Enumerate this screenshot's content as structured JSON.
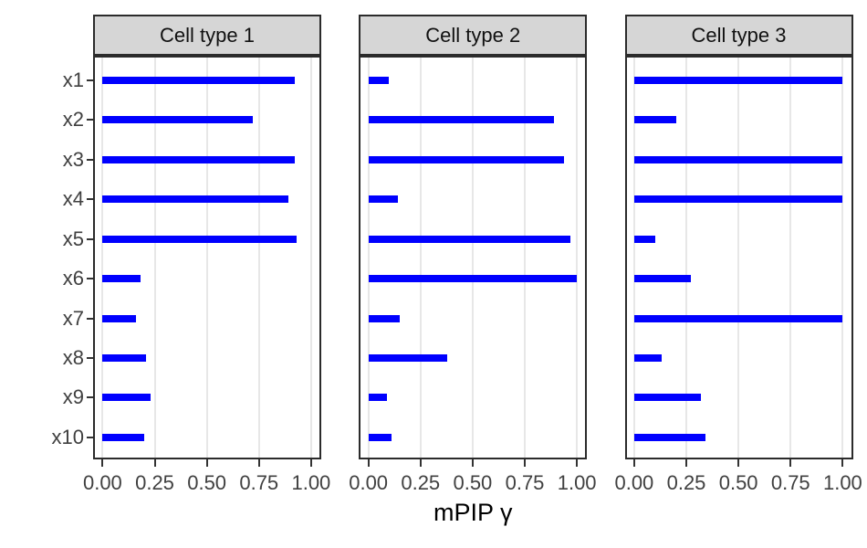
{
  "chart_data": {
    "type": "bar",
    "orientation": "horizontal",
    "title": "",
    "xlabel": "mPIP γ",
    "ylabel": "",
    "categories": [
      "x1",
      "x2",
      "x3",
      "x4",
      "x5",
      "x6",
      "x7",
      "x8",
      "x9",
      "x10"
    ],
    "xlim": [
      0.0,
      1.0
    ],
    "x_tick_values": [
      0.0,
      0.25,
      0.5,
      0.75,
      1.0
    ],
    "x_tick_labels": [
      "0.00",
      "0.25",
      "0.50",
      "0.75",
      "1.00"
    ],
    "grid": "vertical-major-only",
    "legend": "none",
    "facets": [
      {
        "label": "Cell type 1",
        "values": [
          0.92,
          0.72,
          0.92,
          0.89,
          0.93,
          0.18,
          0.16,
          0.21,
          0.23,
          0.2
        ]
      },
      {
        "label": "Cell type 2",
        "values": [
          0.1,
          0.89,
          0.94,
          0.14,
          0.97,
          1.0,
          0.15,
          0.38,
          0.09,
          0.11
        ]
      },
      {
        "label": "Cell type 3",
        "values": [
          1.0,
          0.2,
          1.0,
          1.0,
          0.1,
          0.27,
          1.0,
          0.13,
          0.32,
          0.34
        ]
      }
    ]
  },
  "style": {
    "bar_color": "#0000FF",
    "strip_fill": "#D6D6D6",
    "panel_border": "#2B2B2B",
    "grid_color": "#E7E7E7",
    "tick_color": "#333333",
    "axis_text_color": "#404040",
    "strip_text_color": "#111111"
  }
}
